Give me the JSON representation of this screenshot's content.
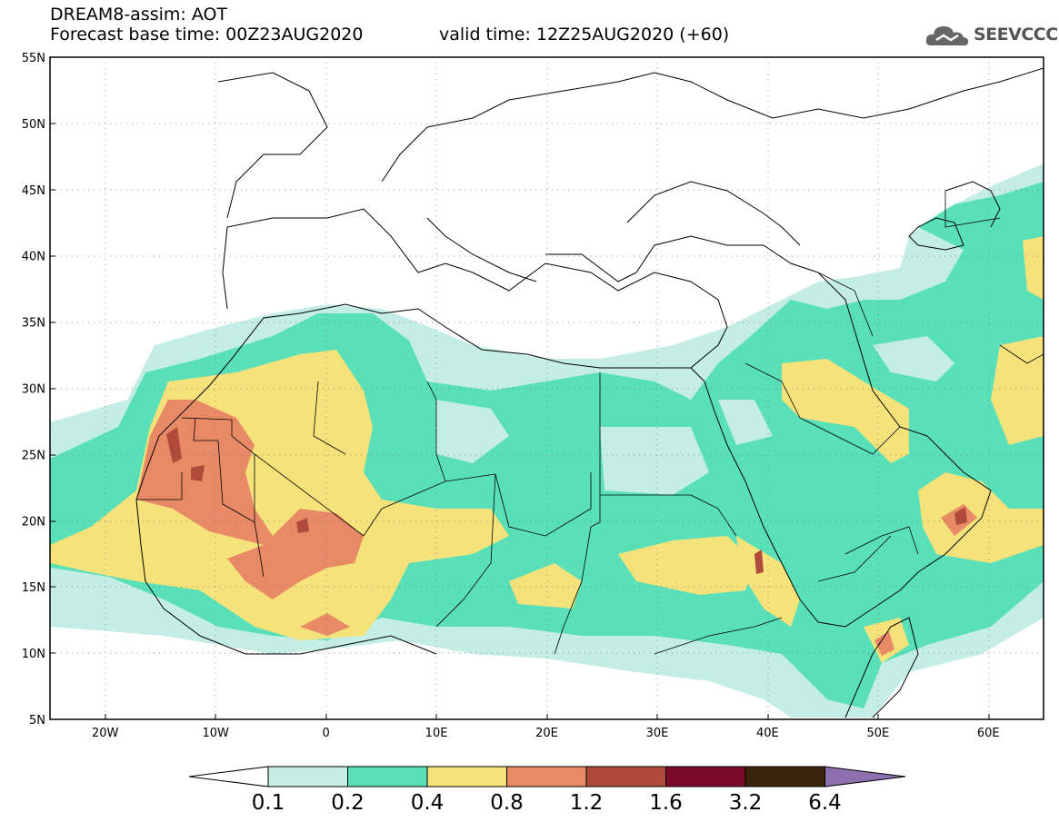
{
  "header": {
    "title": "DREAM8-assim: AOT",
    "base_time": "Forecast base time: 00Z23AUG2020",
    "valid_time": "valid time: 12Z25AUG2020 (+60)"
  },
  "logo": {
    "text": "SEEVCCC",
    "icon": "cloud-icon"
  },
  "map": {
    "lat_labels": [
      "55N",
      "50N",
      "45N",
      "40N",
      "35N",
      "30N",
      "25N",
      "20N",
      "15N",
      "10N",
      "5N"
    ],
    "lon_labels": [
      "20W",
      "10W",
      "0",
      "10E",
      "20E",
      "30E",
      "40E",
      "50E",
      "60E"
    ],
    "lon_range": [
      -25,
      65
    ],
    "lat_range": [
      5,
      55
    ],
    "gridlines": "dotted"
  },
  "colorbar": {
    "levels": [
      "0.1",
      "0.2",
      "0.4",
      "0.8",
      "1.2",
      "1.6",
      "3.2",
      "6.4"
    ],
    "colors": [
      "#ffffff",
      "#c4ede6",
      "#5ae0b8",
      "#f5e27a",
      "#e88a66",
      "#b04a3a",
      "#7a0a2a",
      "#3a2410",
      "#8e6fb0"
    ]
  }
}
